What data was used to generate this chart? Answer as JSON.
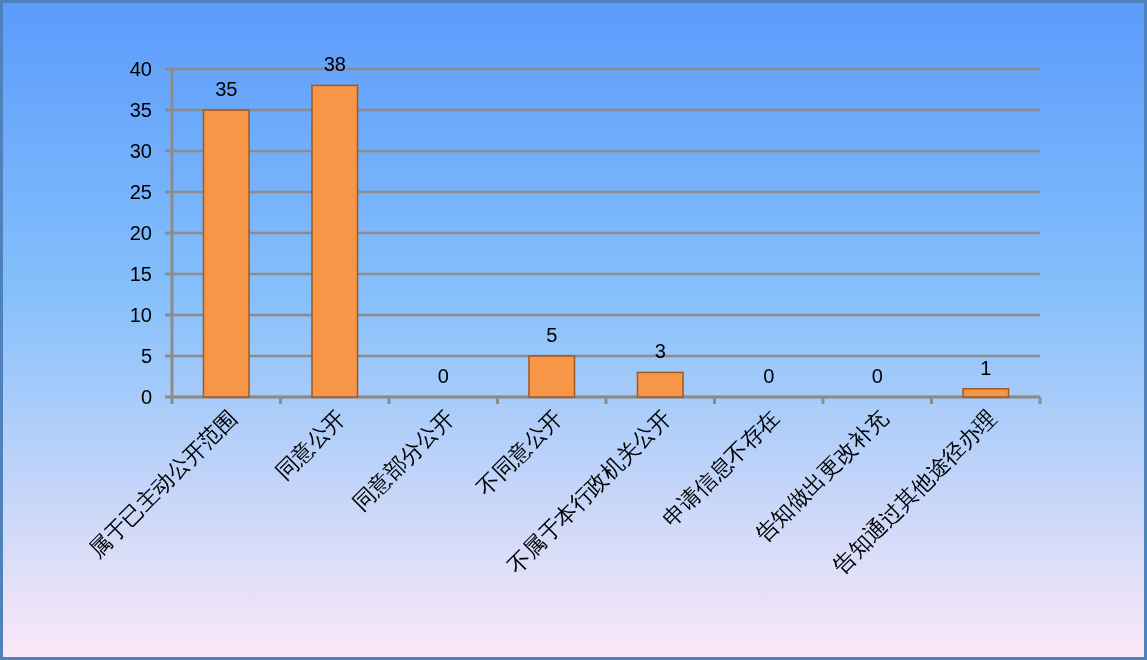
{
  "chart_data": {
    "type": "bar",
    "categories": [
      "属于已主动公开范围",
      "同意公开",
      "同意部分公开",
      "不同意公开",
      "不属于本行政机关公开",
      "申请信息不存在",
      "告知做出更改补充",
      "告知通过其他途径办理"
    ],
    "values": [
      35,
      38,
      0,
      5,
      3,
      0,
      0,
      1
    ],
    "color": "#f79646",
    "ylim": [
      0,
      40
    ],
    "yticks": [
      0,
      5,
      10,
      15,
      20,
      25,
      30,
      35,
      40
    ],
    "grid": "y",
    "data_labels": true
  }
}
